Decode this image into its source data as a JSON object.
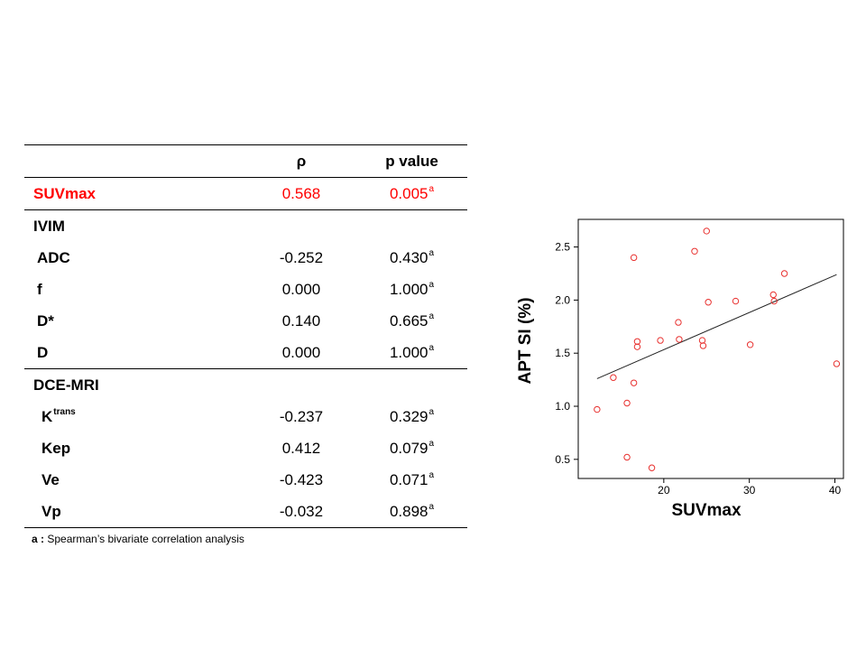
{
  "table": {
    "headers": [
      "",
      "ρ",
      "p value"
    ],
    "rows": [
      {
        "label": "SUVmax",
        "rho": "0.568",
        "p": "0.005",
        "sup": "a",
        "indent": 1,
        "highlight": true,
        "border": true
      },
      {
        "label": "IVIM",
        "rho": "",
        "p": "",
        "sup": "",
        "indent": 1,
        "highlight": false,
        "border": false
      },
      {
        "label": "ADC",
        "rho": "-0.252",
        "p": "0.430",
        "sup": "a",
        "indent": 2,
        "highlight": false,
        "border": false
      },
      {
        "label": "f",
        "rho": "0.000",
        "p": "1.000",
        "sup": "a",
        "indent": 2,
        "highlight": false,
        "border": false
      },
      {
        "label": "D*",
        "rho": "0.140",
        "p": "0.665",
        "sup": "a",
        "indent": 2,
        "highlight": false,
        "border": false
      },
      {
        "label": "D",
        "rho": "0.000",
        "p": "1.000",
        "sup": "a",
        "indent": 2,
        "highlight": false,
        "border": true
      },
      {
        "label": "DCE-MRI",
        "rho": "",
        "p": "",
        "sup": "",
        "indent": 1,
        "highlight": false,
        "border": false
      },
      {
        "label": "K",
        "label_sup": "trans",
        "rho": "-0.237",
        "p": "0.329",
        "sup": "a",
        "indent": 3,
        "highlight": false,
        "border": false
      },
      {
        "label": "Kep",
        "rho": "0.412",
        "p": "0.079",
        "sup": "a",
        "indent": 3,
        "highlight": false,
        "border": false
      },
      {
        "label": "Ve",
        "rho": "-0.423",
        "p": "0.071",
        "sup": "a",
        "indent": 3,
        "highlight": false,
        "border": false
      },
      {
        "label": "Vp",
        "rho": "-0.032",
        "p": "0.898",
        "sup": "a",
        "indent": 3,
        "highlight": false,
        "border": true
      }
    ]
  },
  "footnote": {
    "key": "a :",
    "text": " Spearman’s bivariate correlation  analysis"
  },
  "chart_data": {
    "type": "scatter",
    "xlabel": "SUVmax",
    "ylabel": "APT SI (%)",
    "xlim": [
      10,
      41
    ],
    "ylim": [
      0.32,
      2.76
    ],
    "xticks": [
      20,
      30,
      40
    ],
    "yticks": [
      0.5,
      1.0,
      1.5,
      2.0,
      2.5
    ],
    "ytick_labels": [
      "0.5",
      "1.0",
      "1.5",
      "2.0",
      "2.5"
    ],
    "grid": false,
    "marker_color": "#e8312f",
    "line_color": "#222222",
    "points": [
      [
        12.2,
        0.97
      ],
      [
        14.1,
        1.27
      ],
      [
        15.7,
        1.03
      ],
      [
        15.7,
        0.52
      ],
      [
        16.5,
        2.4
      ],
      [
        16.5,
        1.22
      ],
      [
        16.9,
        1.61
      ],
      [
        16.9,
        1.56
      ],
      [
        18.6,
        0.42
      ],
      [
        19.6,
        1.62
      ],
      [
        21.7,
        1.79
      ],
      [
        21.8,
        1.63
      ],
      [
        23.6,
        2.46
      ],
      [
        24.5,
        1.62
      ],
      [
        24.6,
        1.57
      ],
      [
        25.0,
        2.65
      ],
      [
        25.2,
        1.98
      ],
      [
        28.4,
        1.99
      ],
      [
        30.1,
        1.58
      ],
      [
        32.8,
        2.05
      ],
      [
        32.9,
        1.99
      ],
      [
        34.1,
        2.25
      ],
      [
        40.2,
        1.4
      ]
    ],
    "fit_line": {
      "x": [
        12.2,
        40.2
      ],
      "y": [
        1.26,
        2.24
      ]
    }
  }
}
